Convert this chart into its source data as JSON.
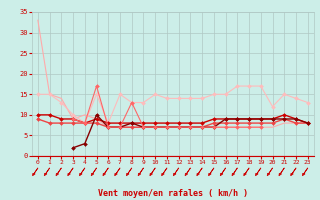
{
  "bg_color": "#cceee8",
  "grid_color": "#b0c8c4",
  "xlabel": "Vent moyen/en rafales ( km/h )",
  "xlabel_color": "#cc0000",
  "tick_color": "#cc0000",
  "xlim": [
    -0.5,
    23.5
  ],
  "ylim": [
    0,
    35
  ],
  "yticks": [
    0,
    5,
    10,
    15,
    20,
    25,
    30,
    35
  ],
  "xticks": [
    0,
    1,
    2,
    3,
    4,
    5,
    6,
    7,
    8,
    9,
    10,
    11,
    12,
    13,
    14,
    15,
    16,
    17,
    18,
    19,
    20,
    21,
    22,
    23
  ],
  "lines": [
    {
      "x": [
        0,
        1,
        2,
        3,
        4,
        5,
        6,
        7,
        8,
        9,
        10,
        11,
        12,
        13,
        14,
        15,
        16,
        17,
        18,
        19,
        20,
        21,
        22,
        23
      ],
      "y": [
        33,
        15,
        14,
        9,
        10,
        9,
        7,
        7,
        7,
        7,
        7,
        7,
        7,
        7,
        7,
        7,
        7,
        7,
        7,
        7,
        7,
        8,
        8,
        8
      ],
      "color": "#ffaaaa",
      "lw": 0.8,
      "marker": null
    },
    {
      "x": [
        0,
        1,
        2,
        3,
        4,
        5,
        6,
        7,
        8,
        9,
        10,
        11,
        12,
        13,
        14,
        15,
        16,
        17,
        18,
        19,
        20,
        21,
        22,
        23
      ],
      "y": [
        15,
        15,
        13,
        10,
        8,
        15,
        8,
        15,
        13,
        13,
        15,
        14,
        14,
        14,
        14,
        15,
        15,
        17,
        17,
        17,
        12,
        15,
        14,
        13
      ],
      "color": "#ffbbbb",
      "lw": 0.8,
      "marker": "D",
      "ms": 2.0
    },
    {
      "x": [
        0,
        1,
        2,
        3,
        4,
        5,
        6,
        7,
        8,
        9,
        10,
        11,
        12,
        13,
        14,
        15,
        16,
        17,
        18,
        19,
        20,
        21,
        22,
        23
      ],
      "y": [
        10,
        10,
        9,
        9,
        8,
        9,
        8,
        8,
        8,
        8,
        8,
        8,
        8,
        8,
        8,
        9,
        9,
        9,
        9,
        9,
        9,
        10,
        9,
        8
      ],
      "color": "#cc0000",
      "lw": 1.0,
      "marker": "D",
      "ms": 2.0
    },
    {
      "x": [
        0,
        1,
        2,
        3,
        4,
        5,
        6,
        7,
        8,
        9,
        10,
        11,
        12,
        13,
        14,
        15,
        16,
        17,
        18,
        19,
        20,
        21,
        22,
        23
      ],
      "y": [
        9,
        8,
        8,
        8,
        8,
        8,
        7,
        7,
        7,
        7,
        7,
        7,
        7,
        7,
        7,
        8,
        8,
        8,
        8,
        8,
        8,
        9,
        8,
        8
      ],
      "color": "#ee4444",
      "lw": 1.0,
      "marker": "D",
      "ms": 2.0
    },
    {
      "x": [
        3,
        4,
        5,
        6,
        7,
        8,
        9,
        10,
        11,
        12,
        13,
        14,
        15,
        16,
        17,
        18,
        19,
        20,
        21,
        22,
        23
      ],
      "y": [
        2,
        3,
        10,
        7,
        7,
        8,
        7,
        7,
        7,
        7,
        7,
        7,
        7,
        9,
        9,
        9,
        9,
        9,
        9,
        9,
        8
      ],
      "color": "#880000",
      "lw": 1.0,
      "marker": "D",
      "ms": 2.0
    },
    {
      "x": [
        3,
        4,
        5,
        6,
        7,
        8,
        9,
        10,
        11,
        12,
        13,
        14,
        15,
        16,
        17,
        18,
        19
      ],
      "y": [
        9,
        8,
        17,
        7,
        7,
        13,
        7,
        7,
        7,
        7,
        7,
        7,
        7,
        7,
        7,
        7,
        7
      ],
      "color": "#ff6666",
      "lw": 0.8,
      "marker": "D",
      "ms": 2.0
    }
  ],
  "arrow_color": "#cc0000"
}
